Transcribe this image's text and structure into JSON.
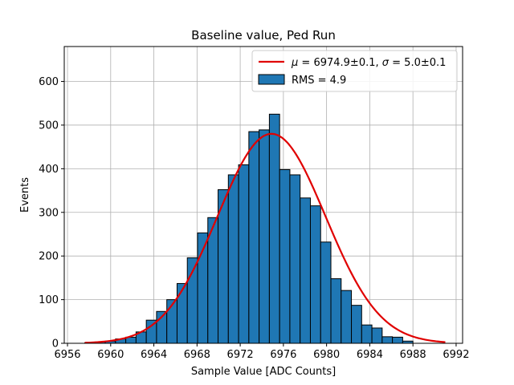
{
  "chart_data": {
    "type": "bar",
    "title": "Baseline value, Ped Run",
    "xlabel": "Sample Value [ADC Counts]",
    "ylabel": "Events",
    "xlim": [
      6955.7,
      6992.6
    ],
    "ylim": [
      0,
      680
    ],
    "xticks": [
      6956,
      6960,
      6964,
      6968,
      6972,
      6976,
      6980,
      6984,
      6988,
      6992
    ],
    "yticks": [
      0,
      100,
      200,
      300,
      400,
      500,
      600
    ],
    "grid": true,
    "legend_position": "top-right",
    "histogram": {
      "name": "RMS = 4.9",
      "bin_start": 6957.6,
      "bin_width": 0.95,
      "counts": [
        1,
        3,
        5,
        10,
        14,
        26,
        53,
        73,
        100,
        137,
        196,
        253,
        288,
        352,
        386,
        409,
        485,
        489,
        525,
        398,
        386,
        333,
        315,
        232,
        148,
        121,
        87,
        42,
        35,
        15,
        14,
        5
      ],
      "fill_color": "#1f77b4",
      "edge_color": "#000000"
    },
    "fit": {
      "name": "μ = 6974.9±0.1, σ = 5.0±0.1",
      "mu": 6974.9,
      "sigma": 5.0,
      "amplitude": 480,
      "x_range": [
        6957.6,
        6991.0
      ],
      "color": "#e00000"
    }
  },
  "legend": {
    "fit_label_mu": "μ",
    "fit_label_mu_value": " = 6974.9±0.1, ",
    "fit_label_sigma": "σ",
    "fit_label_sigma_value": " = 5.0±0.1",
    "hist_label": "RMS = 4.9"
  }
}
